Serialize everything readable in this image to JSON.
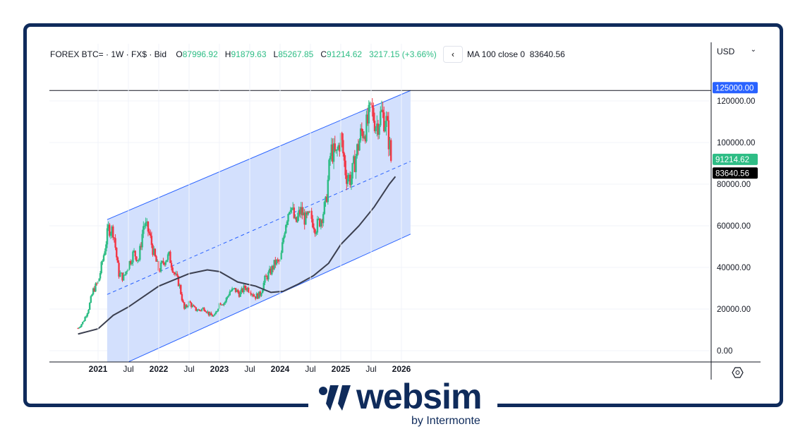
{
  "legend": {
    "symbol": "FOREX BTC= · 1W · FX$ · Bid",
    "o_label": "O",
    "o": "87996.92",
    "h_label": "H",
    "h": "91879.63",
    "l_label": "L",
    "l": "85267.85",
    "c_label": "C",
    "c": "91214.62",
    "change": "3217.15 (+3.66%)",
    "ma_label": "MA 100 close 0",
    "ma_value": "83640.56",
    "collapse_icon": "‹"
  },
  "currency": "USD",
  "brand": {
    "name": "websim",
    "sub": "by Intermonte"
  },
  "colors": {
    "up": "#2ebd85",
    "down": "#f23645",
    "channel": "#2962ff",
    "fill": "#d1defd",
    "ma": "#3b3f4f",
    "frame": "#0f2b5b"
  },
  "chart_data": {
    "type": "candlestick",
    "ylim": [
      -5000,
      130000
    ],
    "yticks": [
      0,
      20000,
      40000,
      60000,
      80000,
      100000,
      120000
    ],
    "ytick_labels": [
      "0.00",
      "20000.00",
      "40000.00",
      "60000.00",
      "80000.00",
      "100000.00",
      "120000.00"
    ],
    "xticks": [
      2021,
      2021.5,
      2022,
      2022.5,
      2023,
      2023.5,
      2024,
      2024.5,
      2025,
      2025.5,
      2026
    ],
    "xtick_labels": [
      "2021",
      "Jul",
      "2022",
      "Jul",
      "2023",
      "Jul",
      "2024",
      "Jul",
      "2025",
      "Jul",
      "2026"
    ],
    "monthly_closes_start": 2020.67,
    "monthly_closes": [
      10800,
      13800,
      19700,
      29000,
      33000,
      45000,
      58800,
      57700,
      37300,
      35000,
      41500,
      47100,
      43800,
      61300,
      57000,
      46300,
      38500,
      43200,
      45500,
      37700,
      31800,
      19900,
      23300,
      20000,
      19400,
      20500,
      17200,
      16500,
      23100,
      23100,
      28500,
      29300,
      27200,
      30500,
      29200,
      26000,
      27000,
      34500,
      37700,
      42300,
      42600,
      61200,
      71300,
      60700,
      67500,
      62700,
      64600,
      59000,
      63300,
      70300,
      96400,
      93400,
      102400,
      84400,
      82500,
      94200,
      104600,
      107100,
      115800,
      108200,
      114000,
      109500,
      91214.62
    ],
    "ma100": [
      [
        2020.67,
        8000
      ],
      [
        2021.0,
        10500
      ],
      [
        2021.25,
        17000
      ],
      [
        2021.5,
        21000
      ],
      [
        2022.0,
        31000
      ],
      [
        2022.5,
        37000
      ],
      [
        2022.8,
        38800
      ],
      [
        2023.0,
        38000
      ],
      [
        2023.3,
        33000
      ],
      [
        2023.6,
        31000
      ],
      [
        2023.85,
        28000
      ],
      [
        2024.05,
        28500
      ],
      [
        2024.3,
        32000
      ],
      [
        2024.55,
        36000
      ],
      [
        2024.8,
        42000
      ],
      [
        2025.0,
        51000
      ],
      [
        2025.3,
        60000
      ],
      [
        2025.55,
        69000
      ],
      [
        2025.8,
        80000
      ],
      [
        2025.9,
        83640.56
      ]
    ],
    "channel": {
      "upper": [
        [
          2021.15,
          63000
        ],
        [
          2026.15,
          125000
        ]
      ],
      "middle": [
        [
          2021.15,
          27000
        ],
        [
          2026.15,
          91000
        ]
      ],
      "lower": [
        [
          2021.15,
          -10000
        ],
        [
          2026.15,
          56000
        ]
      ]
    },
    "hline": 125000,
    "labels": [
      {
        "value": 125000,
        "text": "125000.00",
        "color": "#2962ff"
      },
      {
        "value": 91214.62,
        "text": "91214.62",
        "color": "#2ebd85"
      },
      {
        "value": 83640.56,
        "text": "83640.56",
        "color": "#000000"
      }
    ]
  }
}
